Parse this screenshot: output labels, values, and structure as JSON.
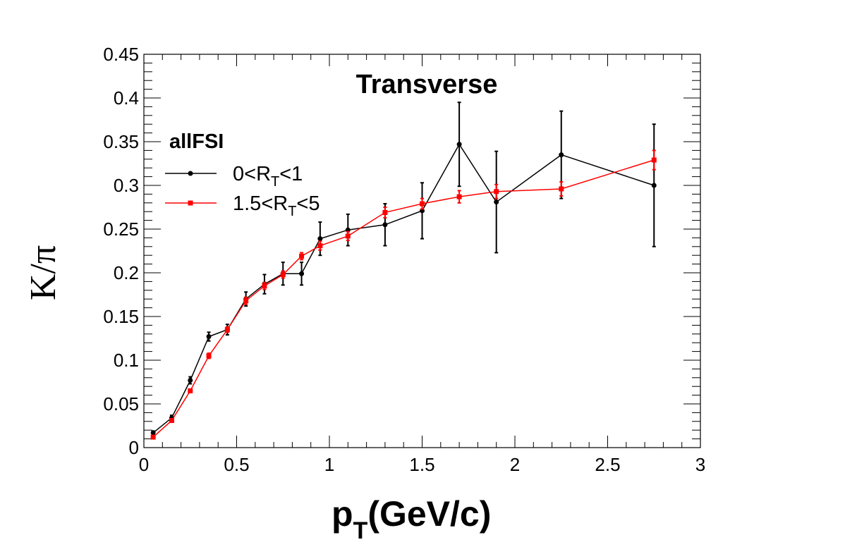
{
  "chart_data": {
    "type": "line",
    "title": "Transverse",
    "xlabel": {
      "main": "p",
      "sub": "T",
      "rest": "(GeV/c)"
    },
    "ylabel": "K/π",
    "xlim": [
      0,
      3
    ],
    "ylim": [
      0,
      0.45
    ],
    "xticks": [
      "0",
      "0.5",
      "1",
      "1.5",
      "2",
      "2.5",
      "3"
    ],
    "yticks": [
      "0",
      "0.05",
      "0.1",
      "0.15",
      "0.2",
      "0.25",
      "0.3",
      "0.35",
      "0.4",
      "0.45"
    ],
    "grid": false,
    "legend": {
      "title": "allFSI",
      "placement": "top-left"
    },
    "series": [
      {
        "name": "0<R_T<1",
        "label_parts": {
          "a": "0<R",
          "sub": "T",
          "b": "<1"
        },
        "color": "#000000",
        "marker": "circle",
        "x": [
          0.05,
          0.15,
          0.25,
          0.35,
          0.45,
          0.55,
          0.65,
          0.75,
          0.85,
          0.95,
          1.1,
          1.3,
          1.5,
          1.7,
          1.9,
          2.25,
          2.75
        ],
        "y": [
          0.017,
          0.034,
          0.077,
          0.127,
          0.135,
          0.17,
          0.187,
          0.199,
          0.199,
          0.239,
          0.249,
          0.255,
          0.271,
          0.347,
          0.281,
          0.335,
          0.3
        ],
        "err": [
          0.002,
          0.003,
          0.004,
          0.005,
          0.006,
          0.008,
          0.011,
          0.013,
          0.013,
          0.019,
          0.018,
          0.024,
          0.032,
          0.048,
          0.058,
          0.05,
          0.07
        ]
      },
      {
        "name": "1.5<R_T<5",
        "label_parts": {
          "a": "1.5<R",
          "sub": "T",
          "b": "<5"
        },
        "color": "#ff0000",
        "marker": "square",
        "x": [
          0.05,
          0.15,
          0.25,
          0.35,
          0.45,
          0.55,
          0.65,
          0.75,
          0.85,
          0.95,
          1.1,
          1.3,
          1.5,
          1.7,
          1.9,
          2.25,
          2.75
        ],
        "y": [
          0.012,
          0.031,
          0.065,
          0.105,
          0.135,
          0.168,
          0.185,
          0.198,
          0.219,
          0.231,
          0.242,
          0.269,
          0.279,
          0.287,
          0.293,
          0.296,
          0.329
        ],
        "err": [
          0.001,
          0.002,
          0.002,
          0.003,
          0.003,
          0.004,
          0.004,
          0.004,
          0.004,
          0.005,
          0.005,
          0.006,
          0.006,
          0.007,
          0.008,
          0.008,
          0.011
        ]
      }
    ]
  }
}
